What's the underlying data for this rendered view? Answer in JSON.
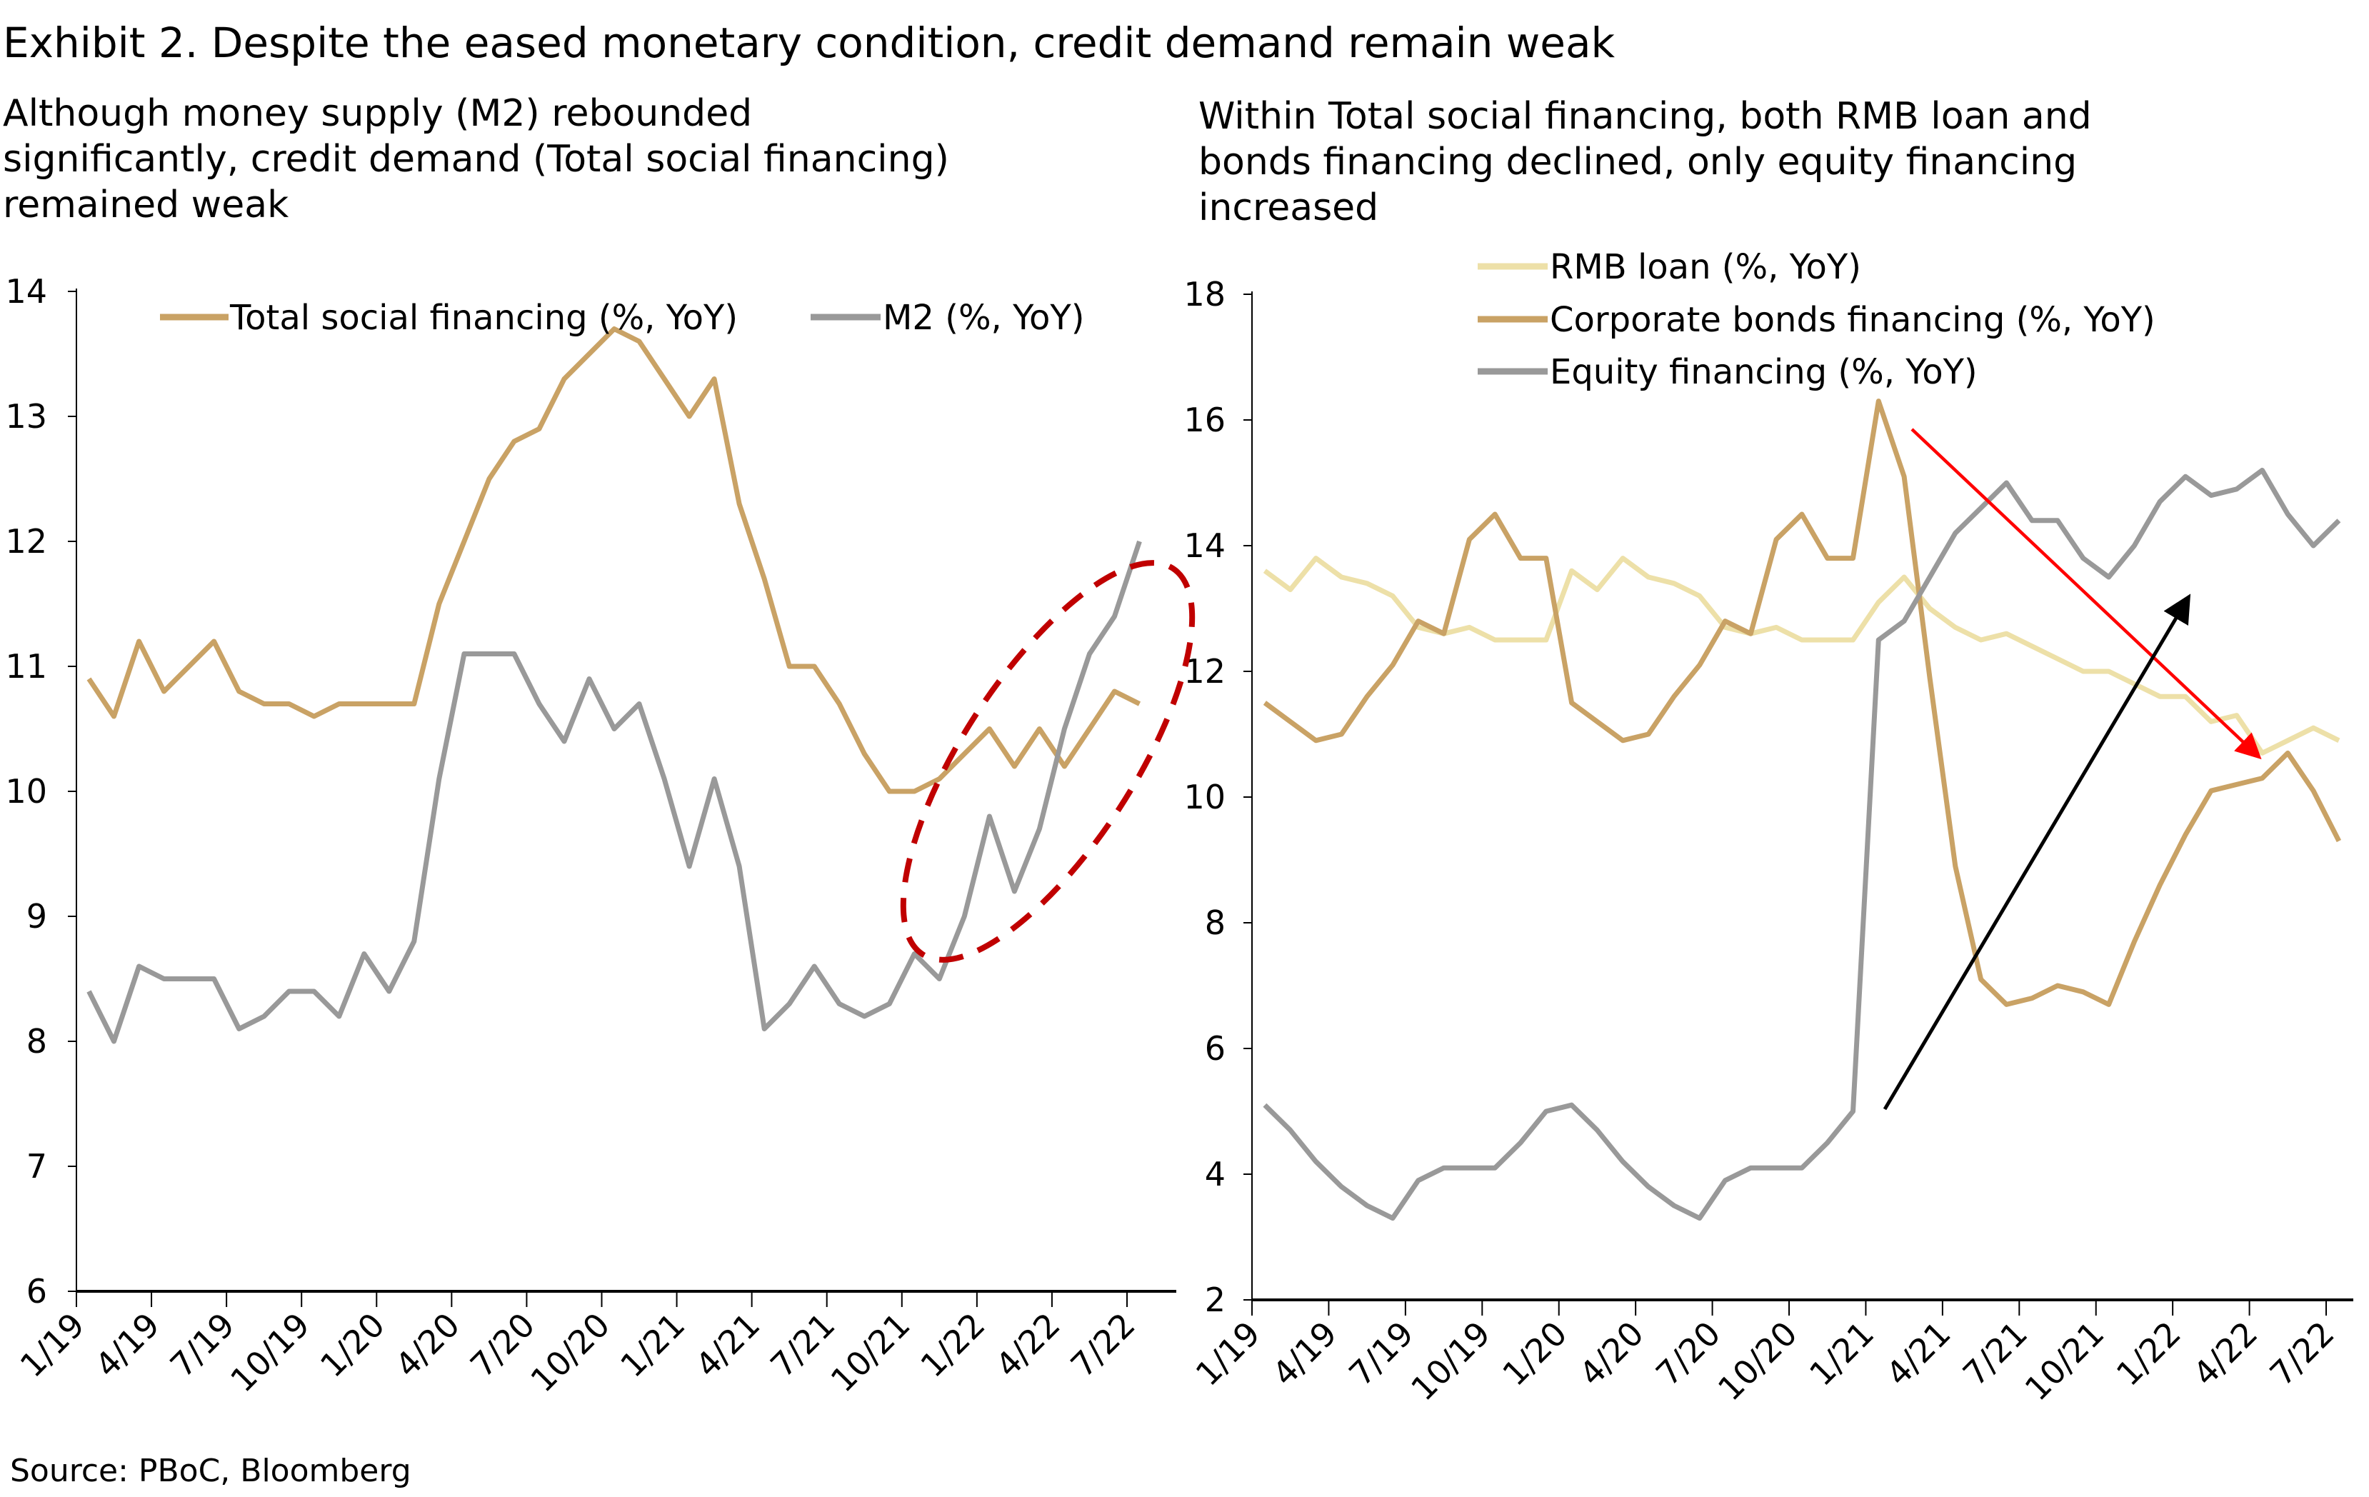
{
  "title": "Exhibit 2. Despite the eased monetary condition, credit demand remain weak",
  "source": "Source: PBoC, Bloomberg",
  "colors": {
    "tsf": "#c9a265",
    "m2": "#999999",
    "rmb": "#ede0a8",
    "bonds": "#c9a265",
    "equity": "#999999",
    "highlight": "#c00000",
    "red_arrow": "#ff0000",
    "black_arrow": "#000000"
  },
  "chart_data": [
    {
      "type": "line",
      "subtitle_lines": [
        "Although money supply (M2) rebounded",
        "significantly, credit demand (Total social financing)",
        "remained weak"
      ],
      "x_tick_labels": [
        "1/19",
        "4/19",
        "7/19",
        "10/19",
        "1/20",
        "4/20",
        "7/20",
        "10/20",
        "1/21",
        "4/21",
        "7/21",
        "10/21",
        "1/22",
        "4/22",
        "7/22"
      ],
      "ylim": [
        6,
        14
      ],
      "y_ticks": [
        6,
        7,
        8,
        9,
        10,
        11,
        12,
        13,
        14
      ],
      "legend_placement": "top",
      "x_range": [
        "1/19",
        "7/22"
      ],
      "x_frequency": "monthly",
      "annotations": [
        "red dashed ellipse highlighting M2 rebound in late 2021 - 2022"
      ],
      "series": [
        {
          "name": "Total social financing (%, YoY)",
          "color_key": "tsf",
          "values": [
            10.9,
            10.6,
            11.2,
            10.8,
            11.0,
            11.2,
            10.8,
            10.7,
            10.7,
            10.6,
            10.7,
            10.7,
            10.7,
            10.7,
            11.5,
            12.0,
            12.5,
            12.8,
            12.9,
            13.3,
            13.5,
            13.7,
            13.6,
            13.3,
            13.0,
            13.3,
            12.3,
            11.7,
            11.0,
            11.0,
            10.7,
            10.3,
            10.0,
            10.0,
            10.1,
            10.3,
            10.5,
            10.2,
            10.5,
            10.2,
            10.5,
            10.8,
            10.7
          ]
        },
        {
          "name": "M2 (%, YoY)",
          "color_key": "m2",
          "values": [
            8.4,
            8.0,
            8.6,
            8.5,
            8.5,
            8.5,
            8.1,
            8.2,
            8.4,
            8.4,
            8.2,
            8.7,
            8.4,
            8.8,
            10.1,
            11.1,
            11.1,
            11.1,
            10.7,
            10.4,
            10.9,
            10.5,
            10.7,
            10.1,
            9.4,
            10.1,
            9.4,
            8.1,
            8.3,
            8.6,
            8.3,
            8.2,
            8.3,
            8.7,
            8.5,
            9.0,
            9.8,
            9.2,
            9.7,
            10.5,
            11.1,
            11.4,
            12.0
          ]
        }
      ]
    },
    {
      "type": "line",
      "subtitle_lines": [
        "Within Total social financing, both RMB loan and",
        "bonds financing declined, only equity financing",
        "increased"
      ],
      "x_tick_labels": [
        "1/19",
        "4/19",
        "7/19",
        "10/19",
        "1/20",
        "4/20",
        "7/20",
        "10/20",
        "1/21",
        "4/21",
        "7/21",
        "10/21",
        "1/22",
        "4/22",
        "7/22"
      ],
      "ylim": [
        2,
        18
      ],
      "y_ticks": [
        2,
        4,
        6,
        8,
        10,
        12,
        14,
        16,
        18
      ],
      "legend_placement": "top",
      "x_range": [
        "1/19",
        "7/22"
      ],
      "x_frequency": "monthly",
      "annotations": [
        "red arrow pointing down (bonds/RMB loan decline)",
        "black arrow pointing up (equity increase)"
      ],
      "series": [
        {
          "name": "RMB loan (%, YoY)",
          "color_key": "rmb",
          "values": [
            13.6,
            13.3,
            13.8,
            13.5,
            13.4,
            13.2,
            12.7,
            12.6,
            12.7,
            12.5,
            12.5,
            12.5,
            13.6,
            13.3,
            13.8,
            13.5,
            13.4,
            13.2,
            12.7,
            12.6,
            12.7,
            12.5,
            12.5,
            12.5,
            13.1,
            13.5,
            13.0,
            12.7,
            12.5,
            12.6,
            12.4,
            12.2,
            12.0,
            12.0,
            11.8,
            11.6,
            11.6,
            11.2,
            11.3,
            10.7,
            10.9,
            11.1,
            10.9
          ]
        },
        {
          "name": "Corporate bonds financing (%, YoY)",
          "color_key": "bonds",
          "values": [
            11.5,
            11.2,
            10.9,
            11.0,
            11.6,
            12.1,
            12.8,
            12.6,
            14.1,
            14.5,
            13.8,
            13.8,
            11.5,
            11.2,
            10.9,
            11.0,
            11.6,
            12.1,
            12.8,
            12.6,
            14.1,
            14.5,
            13.8,
            13.8,
            16.3,
            15.1,
            11.9,
            8.9,
            7.1,
            6.7,
            6.8,
            7.0,
            6.9,
            6.7,
            7.7,
            8.6,
            9.4,
            10.1,
            10.2,
            10.3,
            10.7,
            10.1,
            9.3
          ]
        },
        {
          "name": "Equity financing (%, YoY)",
          "color_key": "equity",
          "values": [
            5.1,
            4.7,
            4.2,
            3.8,
            3.5,
            3.3,
            3.9,
            4.1,
            4.1,
            4.1,
            4.5,
            5.0,
            5.1,
            4.7,
            4.2,
            3.8,
            3.5,
            3.3,
            3.9,
            4.1,
            4.1,
            4.1,
            4.5,
            5.0,
            12.5,
            12.8,
            13.5,
            14.2,
            14.6,
            15.0,
            14.4,
            14.4,
            13.8,
            13.5,
            14.0,
            14.7,
            15.1,
            14.8,
            14.9,
            15.2,
            14.5,
            14.0,
            14.4
          ]
        }
      ]
    }
  ]
}
